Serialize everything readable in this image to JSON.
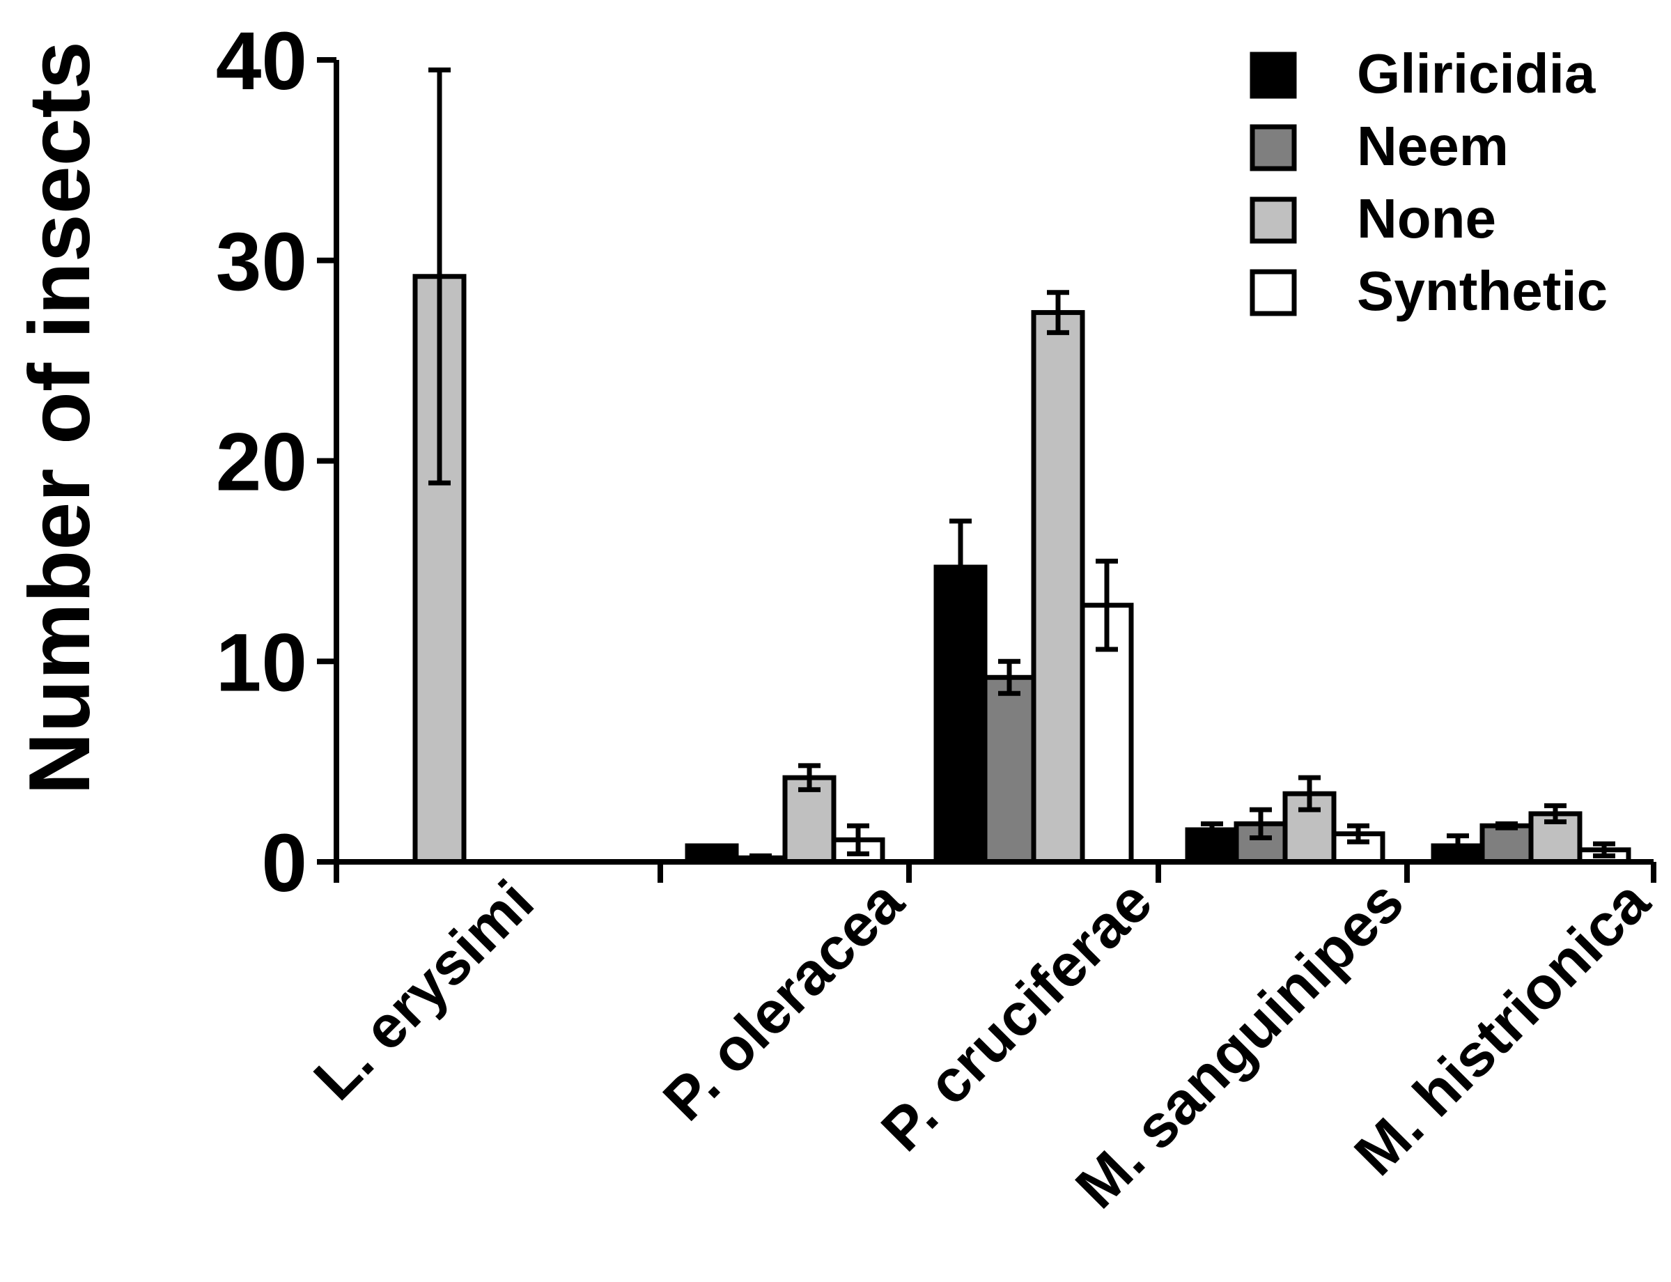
{
  "chart_data": {
    "type": "bar",
    "title": "",
    "xlabel": "",
    "ylabel": "Number of insects",
    "ylim": [
      0,
      40
    ],
    "yticks": [
      0,
      10,
      20,
      30,
      40
    ],
    "ytick_labels": [
      "0",
      "10",
      "20",
      "30",
      "40"
    ],
    "grid": false,
    "legend_position": "top-right",
    "categories": [
      "L. erysimi",
      "P. oleracea",
      "P. cruciferae",
      "M. sanguinipes",
      "M. histrionica"
    ],
    "series": [
      {
        "name": "Gliricidia",
        "color": "#000000",
        "values": [
          0,
          0.8,
          14.7,
          1.6,
          0.8
        ],
        "errors": [
          0,
          0,
          2.3,
          0.3,
          0.5
        ]
      },
      {
        "name": "Neem",
        "color": "#7f7f7f",
        "values": [
          0,
          0.2,
          9.2,
          1.9,
          1.8
        ],
        "errors": [
          0,
          0.1,
          0.8,
          0.7,
          0.1
        ]
      },
      {
        "name": "None",
        "color": "#c0c0c0",
        "values": [
          29.2,
          4.2,
          27.4,
          3.4,
          2.4
        ],
        "errors": [
          10.3,
          0.6,
          1.0,
          0.8,
          0.4
        ]
      },
      {
        "name": "Synthetic",
        "color": "#ffffff",
        "values": [
          0,
          1.1,
          12.8,
          1.4,
          0.6
        ],
        "errors": [
          0,
          0.7,
          2.2,
          0.4,
          0.3
        ]
      }
    ]
  }
}
